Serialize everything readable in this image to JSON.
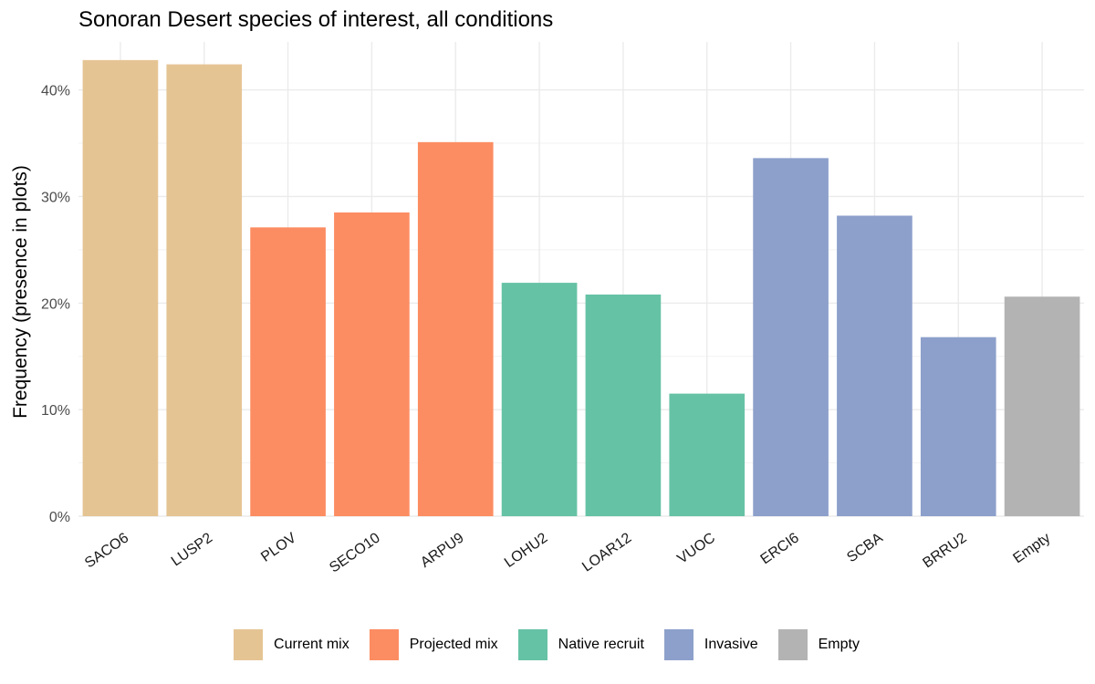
{
  "chart_data": {
    "type": "bar",
    "title": "Sonoran Desert species of interest, all conditions",
    "xlabel": "",
    "ylabel": "Frequency (presence in plots)",
    "ylim": [
      0,
      0.445
    ],
    "y_ticks": [
      0,
      0.1,
      0.2,
      0.3,
      0.4
    ],
    "y_tick_labels": [
      "0%",
      "10%",
      "20%",
      "30%",
      "40%"
    ],
    "grid": true,
    "legend_position": "bottom",
    "categories": [
      "SACO6",
      "LUSP2",
      "PLOV",
      "SECO10",
      "ARPU9",
      "LOHU2",
      "LOAR12",
      "VUOC",
      "ERCI6",
      "SCBA",
      "BRRU2",
      "Empty"
    ],
    "values": [
      0.428,
      0.424,
      0.271,
      0.285,
      0.351,
      0.219,
      0.208,
      0.115,
      0.336,
      0.282,
      0.168,
      0.206
    ],
    "groups": [
      "Current mix",
      "Current mix",
      "Projected mix",
      "Projected mix",
      "Projected mix",
      "Native recruit",
      "Native recruit",
      "Native recruit",
      "Invasive",
      "Invasive",
      "Invasive",
      "Empty"
    ],
    "legend": [
      {
        "name": "Current mix",
        "color": "#E5C494"
      },
      {
        "name": "Projected mix",
        "color": "#FC8D62"
      },
      {
        "name": "Native recruit",
        "color": "#66C2A5"
      },
      {
        "name": "Invasive",
        "color": "#8DA0CB"
      },
      {
        "name": "Empty",
        "color": "#B3B3B3"
      }
    ]
  }
}
